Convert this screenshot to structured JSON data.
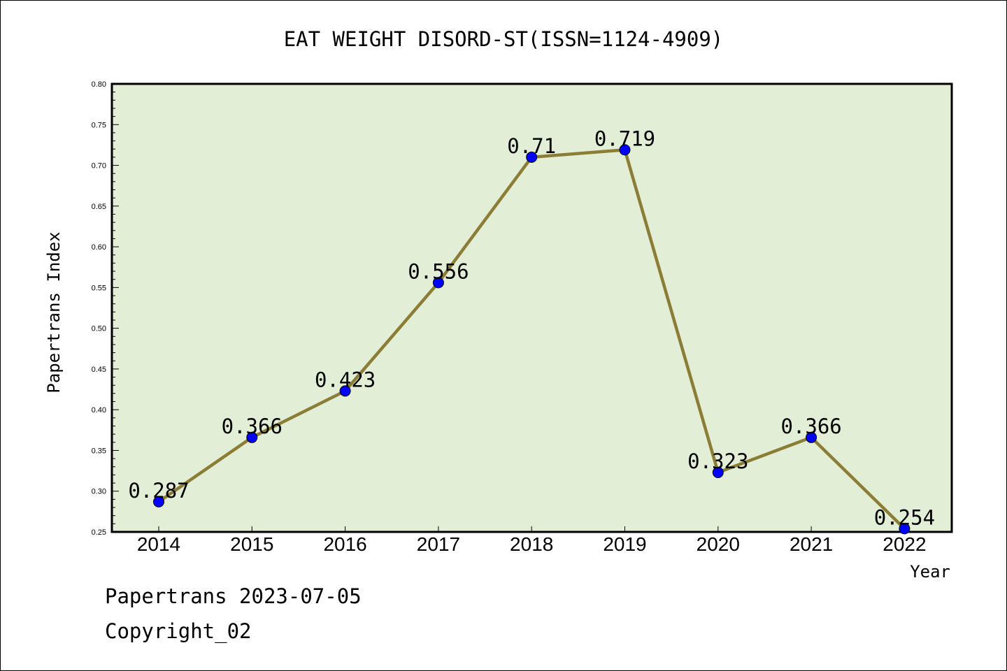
{
  "chart_data": {
    "type": "line",
    "title": "EAT WEIGHT DISORD-ST(ISSN=1124-4909)",
    "xlabel": "Year",
    "ylabel": "Papertrans Index",
    "categories": [
      "2014",
      "2015",
      "2016",
      "2017",
      "2018",
      "2019",
      "2020",
      "2021",
      "2022"
    ],
    "series": [
      {
        "values": [
          0.287,
          0.366,
          0.423,
          0.556,
          0.71,
          0.719,
          0.323,
          0.366,
          0.254
        ]
      }
    ],
    "data_labels": [
      "0.287",
      "0.366",
      "0.423",
      "0.556",
      "0.71",
      "0.719",
      "0.323",
      "0.366",
      "0.254"
    ],
    "ylim": [
      0.25,
      0.8
    ],
    "y_ticks": [
      "0.25",
      "0.30",
      "0.35",
      "0.40",
      "0.45",
      "0.50",
      "0.55",
      "0.60",
      "0.65",
      "0.70",
      "0.75",
      "0.80"
    ],
    "grid": false,
    "colors": {
      "plot_background": "#e2efd6",
      "line": "#8b7d35",
      "marker": "#0000ff"
    }
  },
  "footer": {
    "line1": "Papertrans 2023-07-05",
    "line2": "Copyright_02"
  }
}
